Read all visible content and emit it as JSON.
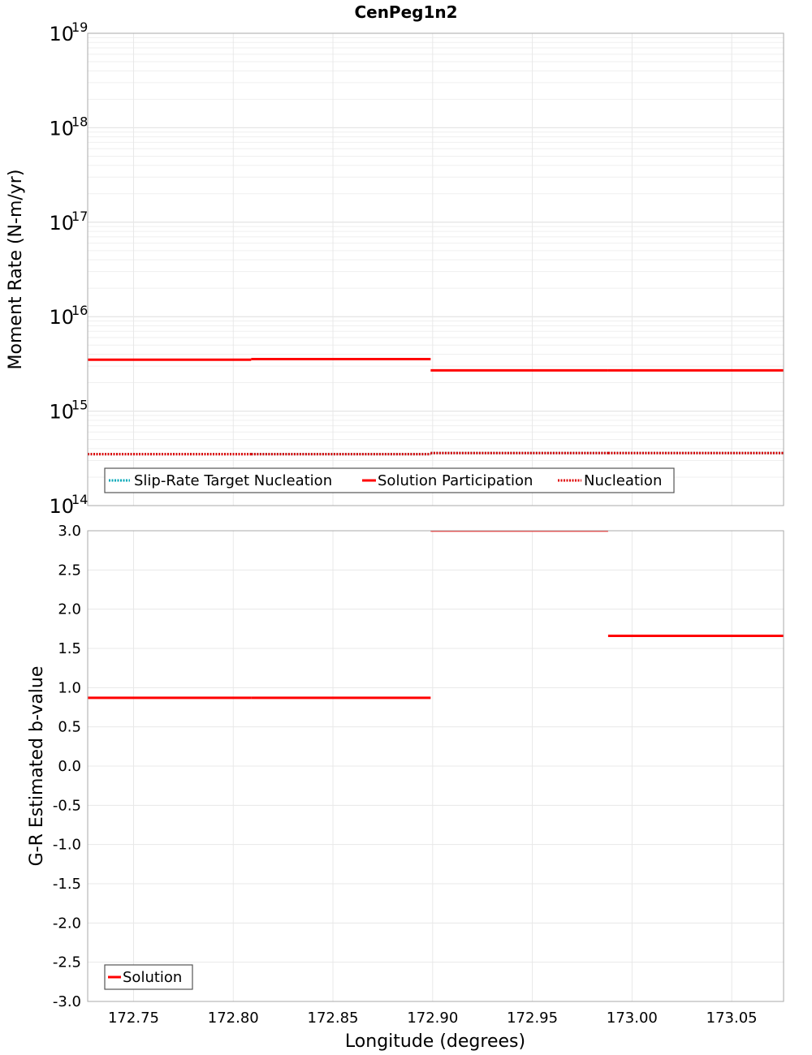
{
  "chart_data": [
    {
      "type": "line",
      "subtype": "step",
      "title": "CenPeg1n2",
      "xlabel": "Longitude (degrees)",
      "ylabel": "Moment Rate (N-m/yr)",
      "yscale": "log",
      "ylim": [
        100000000000000.0,
        1e+19
      ],
      "xlim": [
        172.727,
        173.076
      ],
      "ytick_labels": [
        {
          "base": "10",
          "exp": "19"
        },
        {
          "base": "10",
          "exp": "18"
        },
        {
          "base": "10",
          "exp": "17"
        },
        {
          "base": "10",
          "exp": "16"
        },
        {
          "base": "10",
          "exp": "15"
        },
        {
          "base": "10",
          "exp": "14"
        }
      ],
      "grid": true,
      "legend_position": "lower-left",
      "legend": [
        "Slip-Rate Target Nucleation",
        "Solution Participation",
        "Nucleation"
      ],
      "series": [
        {
          "name": "Slip-Rate Target Nucleation",
          "color": "#00a0b0",
          "style": "dotted",
          "segments": [
            {
              "x0": 172.727,
              "x1": 172.809,
              "y": 350000000000000.0
            },
            {
              "x0": 172.809,
              "x1": 172.899,
              "y": 350000000000000.0
            },
            {
              "x0": 172.899,
              "x1": 172.988,
              "y": 360000000000000.0
            },
            {
              "x0": 172.988,
              "x1": 173.076,
              "y": 360000000000000.0
            }
          ]
        },
        {
          "name": "Solution Participation",
          "color": "#ff0000",
          "style": "solid",
          "segments": [
            {
              "x0": 172.727,
              "x1": 172.809,
              "y": 3500000000000000.0
            },
            {
              "x0": 172.809,
              "x1": 172.899,
              "y": 3550000000000000.0
            },
            {
              "x0": 172.899,
              "x1": 172.988,
              "y": 2700000000000000.0
            },
            {
              "x0": 172.988,
              "x1": 173.076,
              "y": 2700000000000000.0
            }
          ]
        },
        {
          "name": "Nucleation",
          "color": "#e00000",
          "style": "dotted",
          "segments": [
            {
              "x0": 172.727,
              "x1": 172.809,
              "y": 350000000000000.0
            },
            {
              "x0": 172.809,
              "x1": 172.899,
              "y": 350000000000000.0
            },
            {
              "x0": 172.899,
              "x1": 172.988,
              "y": 360000000000000.0
            },
            {
              "x0": 172.988,
              "x1": 173.076,
              "y": 360000000000000.0
            }
          ]
        }
      ]
    },
    {
      "type": "line",
      "subtype": "step",
      "title": "",
      "xlabel": "Longitude (degrees)",
      "ylabel": "G-R Estimated b-value",
      "ylim": [
        -3.0,
        3.0
      ],
      "xlim": [
        172.727,
        173.076
      ],
      "xticks": [
        "172.75",
        "172.80",
        "172.85",
        "172.90",
        "172.95",
        "173.00",
        "173.05"
      ],
      "yticks": [
        "3.0",
        "2.5",
        "2.0",
        "1.5",
        "1.0",
        "0.5",
        "0.0",
        "-0.5",
        "-1.0",
        "-1.5",
        "-2.0",
        "-2.5",
        "-3.0"
      ],
      "grid": true,
      "legend_position": "lower-left",
      "legend": [
        "Solution"
      ],
      "series": [
        {
          "name": "Solution",
          "color": "#ff0000",
          "style": "solid",
          "segments": [
            {
              "x0": 172.727,
              "x1": 172.809,
              "y": 0.87
            },
            {
              "x0": 172.809,
              "x1": 172.899,
              "y": 0.87
            },
            {
              "x0": 172.899,
              "x1": 172.988,
              "y": 3.0
            },
            {
              "x0": 172.988,
              "x1": 173.076,
              "y": 1.66
            }
          ]
        }
      ]
    }
  ],
  "page": {
    "title": "CenPeg1n2",
    "top_ylabel": "Moment Rate (N-m/yr)",
    "bottom_ylabel": "G-R Estimated b-value",
    "xlabel": "Longitude (degrees)",
    "top_legend": [
      "Slip-Rate Target Nucleation",
      "Solution Participation",
      "Nucleation"
    ],
    "bottom_legend": [
      "Solution"
    ]
  }
}
